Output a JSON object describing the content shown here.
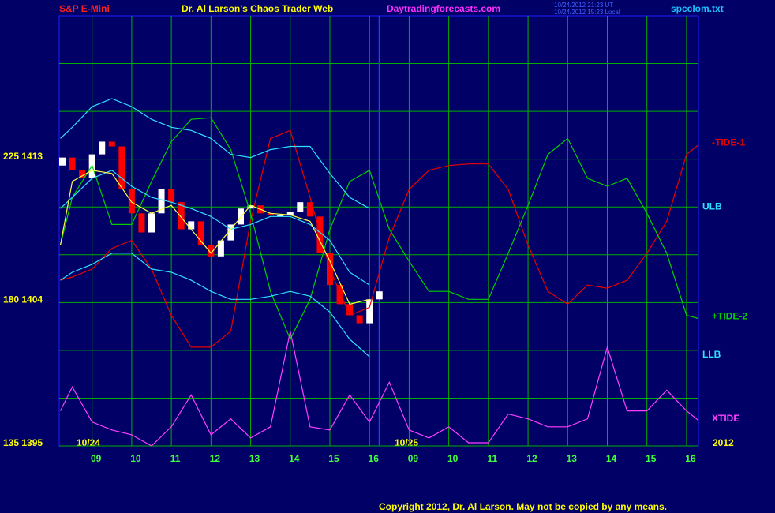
{
  "chart_data": {
    "type": "line",
    "instrument": "S&P E-Mini",
    "title": "Dr. Al Larson's Chaos Trader Web",
    "site": "Daytradingforecasts.com",
    "timestamp_ut": "10/24/2012 21:23 UT",
    "timestamp_local": "10/24/2012 15:23 Local",
    "file": "spcclom.txt",
    "day_labels": [
      "10/24",
      "10/25",
      "2012"
    ],
    "copyright": "Copyright 2012, Dr. Al Larson. May not be copied by any means.",
    "xlim": [
      -0.83,
      15.3
    ],
    "ylim": [
      1395,
      1422
    ],
    "xticks": [
      {
        "value": 0,
        "label": "09"
      },
      {
        "value": 1,
        "label": "10"
      },
      {
        "value": 2,
        "label": "11"
      },
      {
        "value": 3,
        "label": "12"
      },
      {
        "value": 4,
        "label": "13"
      },
      {
        "value": 5,
        "label": "14"
      },
      {
        "value": 6,
        "label": "15"
      },
      {
        "value": 7,
        "label": "16"
      },
      {
        "value": 8,
        "label": "09"
      },
      {
        "value": 9,
        "label": "10"
      },
      {
        "value": 10,
        "label": "11"
      },
      {
        "value": 11,
        "label": "12"
      },
      {
        "value": 12,
        "label": "13"
      },
      {
        "value": 13,
        "label": "14"
      },
      {
        "value": 14,
        "label": "15"
      },
      {
        "value": 15,
        "label": "16"
      }
    ],
    "yticks": [
      {
        "value": 1395,
        "label": "135 1395"
      },
      {
        "value": 1404,
        "label": "180 1404"
      },
      {
        "value": 1413,
        "label": "225 1413"
      }
    ],
    "ygrid": [
      1398,
      1401,
      1407,
      1410,
      1416,
      1419
    ],
    "current_time_x": 7.25,
    "grid": true,
    "grid_color": "#00b000",
    "x": [
      -0.8,
      -0.5,
      0,
      0.5,
      1,
      1.5,
      2,
      2.5,
      3,
      3.5,
      4,
      4.5,
      5,
      5.5,
      6,
      6.5,
      7,
      7.5,
      8,
      8.5,
      9,
      9.5,
      10,
      10.5,
      11,
      11.5,
      12,
      12.5,
      13,
      13.5,
      14,
      14.5,
      15,
      15.3
    ],
    "series": [
      {
        "name": "-TIDE-1",
        "color": "#e80000",
        "values": [
          1405.4,
          1405.6,
          1406.1,
          1407.4,
          1407.9,
          1406.1,
          1403.2,
          1401.2,
          1401.2,
          1402.2,
          1409.1,
          1414.3,
          1414.8,
          1410.6,
          1406.1,
          1403.2,
          1403.7,
          1408.1,
          1411.1,
          1412.3,
          1412.6,
          1412.7,
          1412.7,
          1411.1,
          1407.6,
          1404.7,
          1403.9,
          1405.1,
          1404.9,
          1405.4,
          1407.1,
          1409.1,
          1413.3,
          1413.9
        ]
      },
      {
        "name": "+TIDE-2",
        "color": "#00d000",
        "values": [
          1407.6,
          1410.6,
          1412.6,
          1408.9,
          1408.9,
          1411.6,
          1414.1,
          1415.5,
          1415.6,
          1413.6,
          1409.6,
          1404.7,
          1401.7,
          1404.2,
          1408.6,
          1411.6,
          1412.3,
          1408.6,
          1406.6,
          1404.7,
          1404.7,
          1404.2,
          1404.2,
          1407.1,
          1410.1,
          1413.3,
          1414.3,
          1411.8,
          1411.3,
          1411.8,
          1409.6,
          1407.1,
          1403.2,
          1403.0
        ]
      },
      {
        "name": "ULB",
        "color": "#30e0ff",
        "values": [
          1414.3,
          1415.0,
          1416.3,
          1416.8,
          1416.3,
          1415.5,
          1415.0,
          1414.8,
          1414.3,
          1413.3,
          1413.1,
          1413.6,
          1413.8,
          1413.8,
          1412.1,
          1410.6,
          1409.9,
          null,
          null,
          null,
          null,
          null,
          null,
          null,
          null,
          null,
          null,
          null,
          null,
          null,
          null,
          null,
          null,
          null
        ]
      },
      {
        "name": "LLB",
        "color": "#30e0ff",
        "values": [
          1405.4,
          1405.9,
          1406.4,
          1407.1,
          1407.1,
          1406.1,
          1405.9,
          1405.4,
          1404.7,
          1404.2,
          1404.2,
          1404.4,
          1404.7,
          1404.4,
          1403.4,
          1401.7,
          1400.6,
          null,
          null,
          null,
          null,
          null,
          null,
          null,
          null,
          null,
          null,
          null,
          null,
          null,
          null,
          null,
          null,
          null
        ]
      },
      {
        "color": "#30e0ff",
        "values": [
          1409.9,
          1410.6,
          1411.8,
          1412.3,
          1411.3,
          1410.6,
          1410.3,
          1409.9,
          1409.4,
          1408.6,
          1408.9,
          1409.4,
          1409.4,
          1408.9,
          1407.9,
          1405.9,
          1405.1,
          null,
          null,
          null,
          null,
          null,
          null,
          null,
          null,
          null,
          null,
          null,
          null,
          null,
          null,
          null,
          null,
          null
        ]
      },
      {
        "color": "#ffff40",
        "values": [
          1407.6,
          1411.6,
          1412.3,
          1412.1,
          1410.3,
          1409.6,
          1410.1,
          1408.6,
          1407.1,
          1408.6,
          1410.1,
          1409.6,
          1409.5,
          1409.1,
          1406.6,
          1403.9,
          1404.2,
          null,
          null,
          null,
          null,
          null,
          null,
          null,
          null,
          null,
          null,
          null,
          null,
          null,
          null,
          null,
          null,
          null
        ]
      },
      {
        "name": "XTIDE",
        "color": "#ff40ff",
        "values": [
          1397.2,
          1398.7,
          1396.5,
          1396.0,
          1395.7,
          1395.0,
          1396.2,
          1398.2,
          1395.7,
          1396.7,
          1395.5,
          1396.2,
          1402.2,
          1396.2,
          1396.0,
          1398.2,
          1396.5,
          1399.0,
          1396.0,
          1395.5,
          1396.2,
          1395.2,
          1395.2,
          1397.0,
          1396.7,
          1396.2,
          1396.2,
          1396.7,
          1401.2,
          1397.2,
          1397.2,
          1398.5,
          1397.2,
          1396.6
        ]
      }
    ],
    "candles": {
      "up_color": "#ffffff",
      "down_color": "#ff0000",
      "x": [
        -0.75,
        -0.5,
        -0.25,
        0,
        0.25,
        0.5,
        0.75,
        1,
        1.25,
        1.5,
        1.75,
        2,
        2.25,
        2.5,
        2.75,
        3,
        3.25,
        3.5,
        3.75,
        4,
        4.25,
        4.5,
        4.75,
        5,
        5.25,
        5.5,
        5.75,
        6,
        6.25,
        6.5,
        6.75,
        7,
        7.25
      ],
      "open": [
        1412.6,
        1413.1,
        1412.3,
        1411.8,
        1413.3,
        1414.1,
        1413.8,
        1411.1,
        1409.6,
        1408.4,
        1409.6,
        1411.1,
        1410.3,
        1408.6,
        1409.1,
        1407.6,
        1406.9,
        1407.9,
        1408.9,
        1409.9,
        1410.1,
        1409.6,
        1409.5,
        1409.5,
        1409.7,
        1410.3,
        1409.4,
        1407.1,
        1405.1,
        1403.9,
        1403.2,
        1402.7,
        1404.2
      ],
      "close": [
        1413.1,
        1412.3,
        1411.8,
        1413.3,
        1414.1,
        1413.8,
        1411.1,
        1409.6,
        1408.4,
        1409.6,
        1411.1,
        1410.3,
        1408.6,
        1409.1,
        1407.6,
        1406.9,
        1407.9,
        1408.9,
        1409.9,
        1410.1,
        1409.6,
        1409.5,
        1409.5,
        1409.7,
        1410.3,
        1409.4,
        1407.1,
        1405.1,
        1403.9,
        1403.2,
        1402.7,
        1404.2,
        1404.7
      ]
    }
  }
}
